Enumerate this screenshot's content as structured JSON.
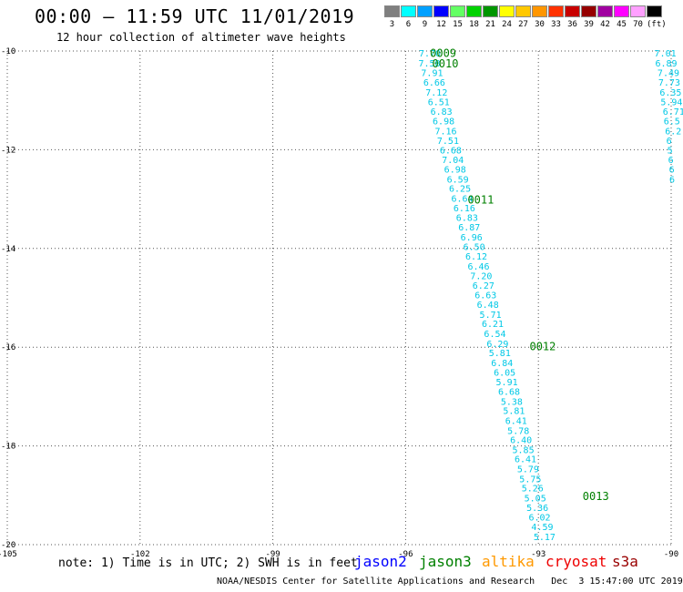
{
  "title": "00:00 – 11:59 UTC 11/01/2019",
  "subtitle": "12 hour collection of altimeter wave heights",
  "legend": {
    "labels": [
      "3",
      "6",
      "9",
      "12",
      "15",
      "18",
      "21",
      "24",
      "27",
      "30",
      "33",
      "36",
      "39",
      "42",
      "45",
      "70",
      "(ft)"
    ],
    "colors": [
      "#7f7f7f",
      "#00ffff",
      "#00a0ff",
      "#0000ff",
      "#64ff64",
      "#00d200",
      "#009600",
      "#ffff00",
      "#ffc800",
      "#ff9600",
      "#ff3200",
      "#c80000",
      "#960000",
      "#a000a0",
      "#ff00ff",
      "#ffa0ff",
      "#000000"
    ]
  },
  "axes": {
    "lon_ticks": [
      "-105",
      "-102",
      "-99",
      "-96",
      "-93",
      "-90"
    ],
    "lat_ticks": [
      "-10",
      "-12",
      "-14",
      "-16",
      "-18",
      "-20"
    ]
  },
  "tracks": [
    {
      "color": "#00c8e6",
      "points": [
        {
          "lon": -95.7,
          "lat": -10.04,
          "label": "7.70"
        },
        {
          "lon": -95.71,
          "lat": -10.24,
          "label": "7.58"
        },
        {
          "lon": -95.65,
          "lat": -10.43,
          "label": "7.91"
        },
        {
          "lon": -95.6,
          "lat": -10.63,
          "label": "6.66"
        },
        {
          "lon": -95.55,
          "lat": -10.83,
          "label": "7.12"
        },
        {
          "lon": -95.5,
          "lat": -11.02,
          "label": "6.51"
        },
        {
          "lon": -95.44,
          "lat": -11.22,
          "label": "6.83"
        },
        {
          "lon": -95.39,
          "lat": -11.41,
          "label": "6.98"
        },
        {
          "lon": -95.34,
          "lat": -11.61,
          "label": "7.16"
        },
        {
          "lon": -95.29,
          "lat": -11.81,
          "label": "7.51"
        },
        {
          "lon": -95.23,
          "lat": -12.0,
          "label": "6.68"
        },
        {
          "lon": -95.18,
          "lat": -12.2,
          "label": "7.04"
        },
        {
          "lon": -95.13,
          "lat": -12.39,
          "label": "6.98"
        },
        {
          "lon": -95.07,
          "lat": -12.59,
          "label": "6.59"
        },
        {
          "lon": -95.02,
          "lat": -12.78,
          "label": "6.25"
        },
        {
          "lon": -94.97,
          "lat": -12.98,
          "label": "6.64"
        },
        {
          "lon": -94.92,
          "lat": -13.17,
          "label": "6.16"
        },
        {
          "lon": -94.86,
          "lat": -13.37,
          "label": "6.83"
        },
        {
          "lon": -94.81,
          "lat": -13.56,
          "label": "6.87"
        },
        {
          "lon": -94.76,
          "lat": -13.76,
          "label": "6.96"
        },
        {
          "lon": -94.7,
          "lat": -13.96,
          "label": "6.50"
        },
        {
          "lon": -94.65,
          "lat": -14.15,
          "label": "6.12"
        },
        {
          "lon": -94.6,
          "lat": -14.35,
          "label": "6.46"
        },
        {
          "lon": -94.54,
          "lat": -14.55,
          "label": "7.20"
        },
        {
          "lon": -94.49,
          "lat": -14.74,
          "label": "6.27"
        },
        {
          "lon": -94.44,
          "lat": -14.94,
          "label": "6.63"
        },
        {
          "lon": -94.39,
          "lat": -15.13,
          "label": "6.48"
        },
        {
          "lon": -94.33,
          "lat": -15.33,
          "label": "5.71"
        },
        {
          "lon": -94.28,
          "lat": -15.52,
          "label": "6.21"
        },
        {
          "lon": -94.23,
          "lat": -15.72,
          "label": "6.54"
        },
        {
          "lon": -94.17,
          "lat": -15.92,
          "label": "6.29"
        },
        {
          "lon": -94.12,
          "lat": -16.11,
          "label": "5.81"
        },
        {
          "lon": -94.07,
          "lat": -16.31,
          "label": "6.84"
        },
        {
          "lon": -94.01,
          "lat": -16.5,
          "label": "6.05"
        },
        {
          "lon": -93.96,
          "lat": -16.7,
          "label": "5.91"
        },
        {
          "lon": -93.91,
          "lat": -16.89,
          "label": "6.68"
        },
        {
          "lon": -93.85,
          "lat": -17.09,
          "label": "5.38"
        },
        {
          "lon": -93.8,
          "lat": -17.28,
          "label": "5.81"
        },
        {
          "lon": -93.75,
          "lat": -17.48,
          "label": "6.41"
        },
        {
          "lon": -93.7,
          "lat": -17.68,
          "label": "5.78"
        },
        {
          "lon": -93.64,
          "lat": -17.87,
          "label": "6.40"
        },
        {
          "lon": -93.59,
          "lat": -18.07,
          "label": "5.85"
        },
        {
          "lon": -93.54,
          "lat": -18.26,
          "label": "6.41"
        },
        {
          "lon": -93.48,
          "lat": -18.46,
          "label": "5.79"
        },
        {
          "lon": -93.43,
          "lat": -18.66,
          "label": "5.75"
        },
        {
          "lon": -93.38,
          "lat": -18.85,
          "label": "5.26"
        },
        {
          "lon": -93.32,
          "lat": -19.05,
          "label": "5.05"
        },
        {
          "lon": -93.27,
          "lat": -19.24,
          "label": "5.36"
        },
        {
          "lon": -93.22,
          "lat": -19.44,
          "label": "6.02"
        },
        {
          "lon": -93.16,
          "lat": -19.63,
          "label": "4.59"
        },
        {
          "lon": -93.11,
          "lat": -19.83,
          "label": "5.17"
        }
      ]
    },
    {
      "color": "#00c8e6",
      "points": [
        {
          "lon": -90.38,
          "lat": -10.04,
          "label": "7.01"
        },
        {
          "lon": -90.36,
          "lat": -10.24,
          "label": "6.89"
        },
        {
          "lon": -90.31,
          "lat": -10.43,
          "label": "7.49"
        },
        {
          "lon": -90.29,
          "lat": -10.63,
          "label": "7.73"
        },
        {
          "lon": -90.26,
          "lat": -10.83,
          "label": "6.35"
        },
        {
          "lon": -90.24,
          "lat": -11.02,
          "label": "5.94"
        },
        {
          "lon": -90.19,
          "lat": -11.22,
          "label": "6.71"
        },
        {
          "lon": -90.17,
          "lat": -11.41,
          "label": "6.5"
        },
        {
          "lon": -90.14,
          "lat": -11.61,
          "label": "6.2"
        },
        {
          "lon": -90.11,
          "lat": -11.81,
          "label": "6"
        },
        {
          "lon": -90.09,
          "lat": -12.0,
          "label": "5"
        },
        {
          "lon": -90.07,
          "lat": -12.2,
          "label": "6"
        },
        {
          "lon": -90.05,
          "lat": -12.39,
          "label": "6"
        },
        {
          "lon": -90.04,
          "lat": -12.59,
          "label": "6"
        }
      ]
    }
  ],
  "time_labels": [
    {
      "lon": -95.45,
      "lat": -10.03,
      "label": "0009",
      "color": "#008000"
    },
    {
      "lon": -95.4,
      "lat": -10.24,
      "label": "0010",
      "color": "#008000"
    },
    {
      "lon": -94.6,
      "lat": -13.0,
      "label": "0011",
      "color": "#008000"
    },
    {
      "lon": -93.2,
      "lat": -15.97,
      "label": "0012",
      "color": "#008000"
    },
    {
      "lon": -92.0,
      "lat": -19.0,
      "label": "0013",
      "color": "#008000"
    }
  ],
  "note": "note: 1) Time is in UTC; 2) SWH is in feet",
  "satellites": [
    {
      "name": "jason2",
      "color": "#0000ff"
    },
    {
      "name": "jason3",
      "color": "#008000"
    },
    {
      "name": "altika",
      "color": "#ff9900"
    },
    {
      "name": "cryosat",
      "color": "#ee0000"
    },
    {
      "name": "s3a",
      "color": "#990000"
    }
  ],
  "footer": "NOAA/NESDIS Center for Satellite Applications and Research   Dec  3 15:47:00 UTC 2019"
}
